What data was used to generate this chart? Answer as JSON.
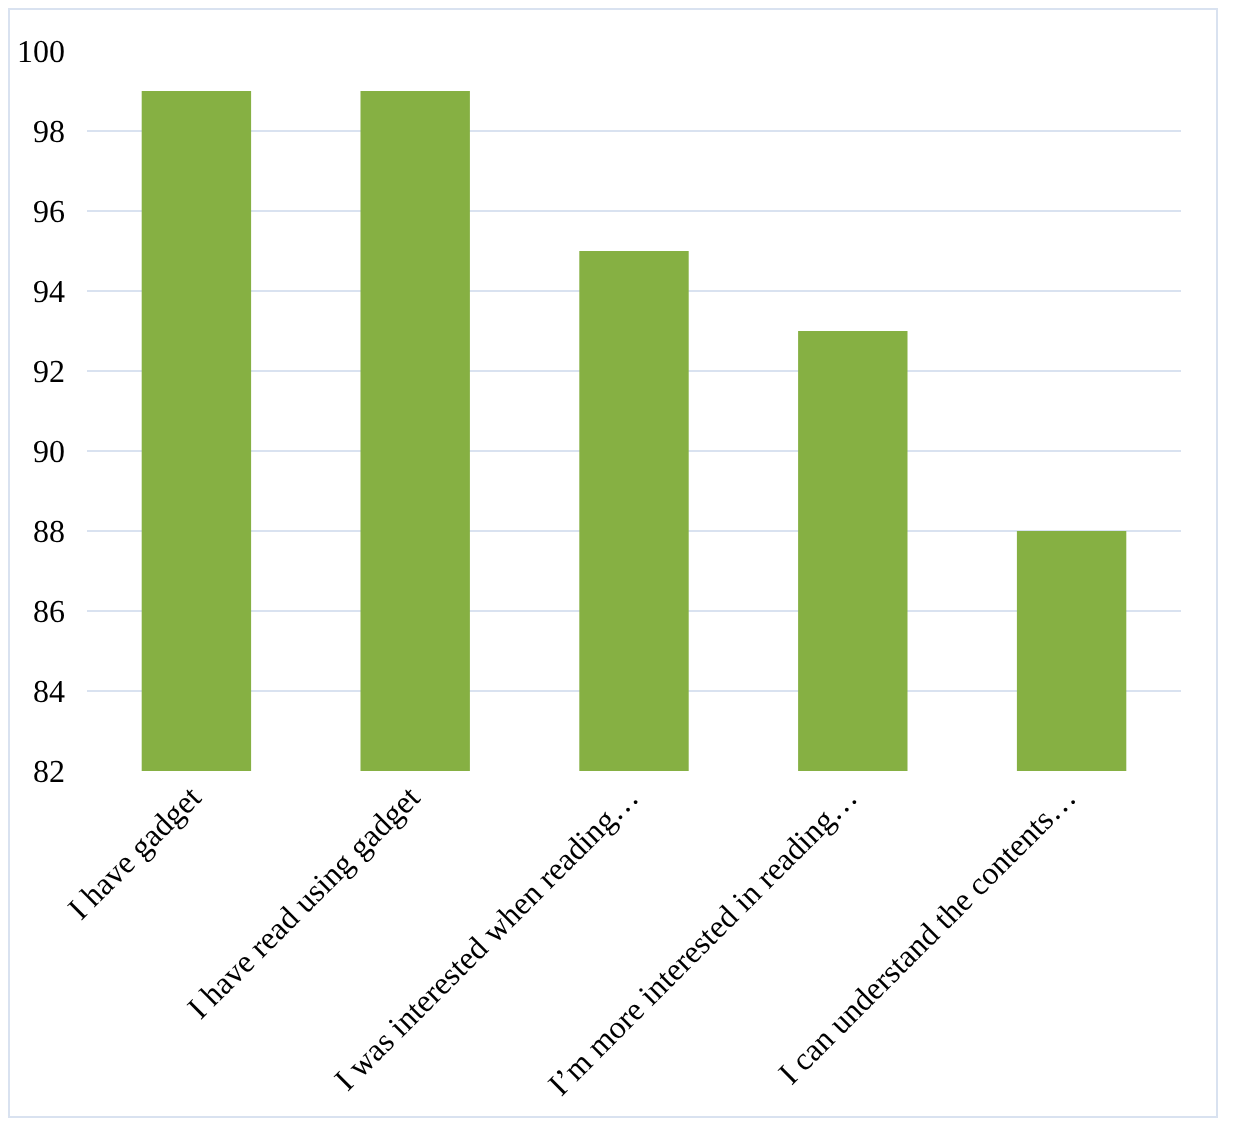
{
  "chart_data": {
    "type": "bar",
    "categories": [
      "I have gadget",
      "I have read using gadget",
      "I was interested when reading…",
      "I’m more interested in reading…",
      "I can understand the contents…"
    ],
    "values": [
      99,
      99,
      95,
      93,
      88
    ],
    "color": "#86b043",
    "ylim": [
      82,
      100
    ],
    "yticks": [
      82,
      84,
      86,
      88,
      90,
      92,
      94,
      96,
      98,
      100
    ],
    "grid": "y"
  }
}
